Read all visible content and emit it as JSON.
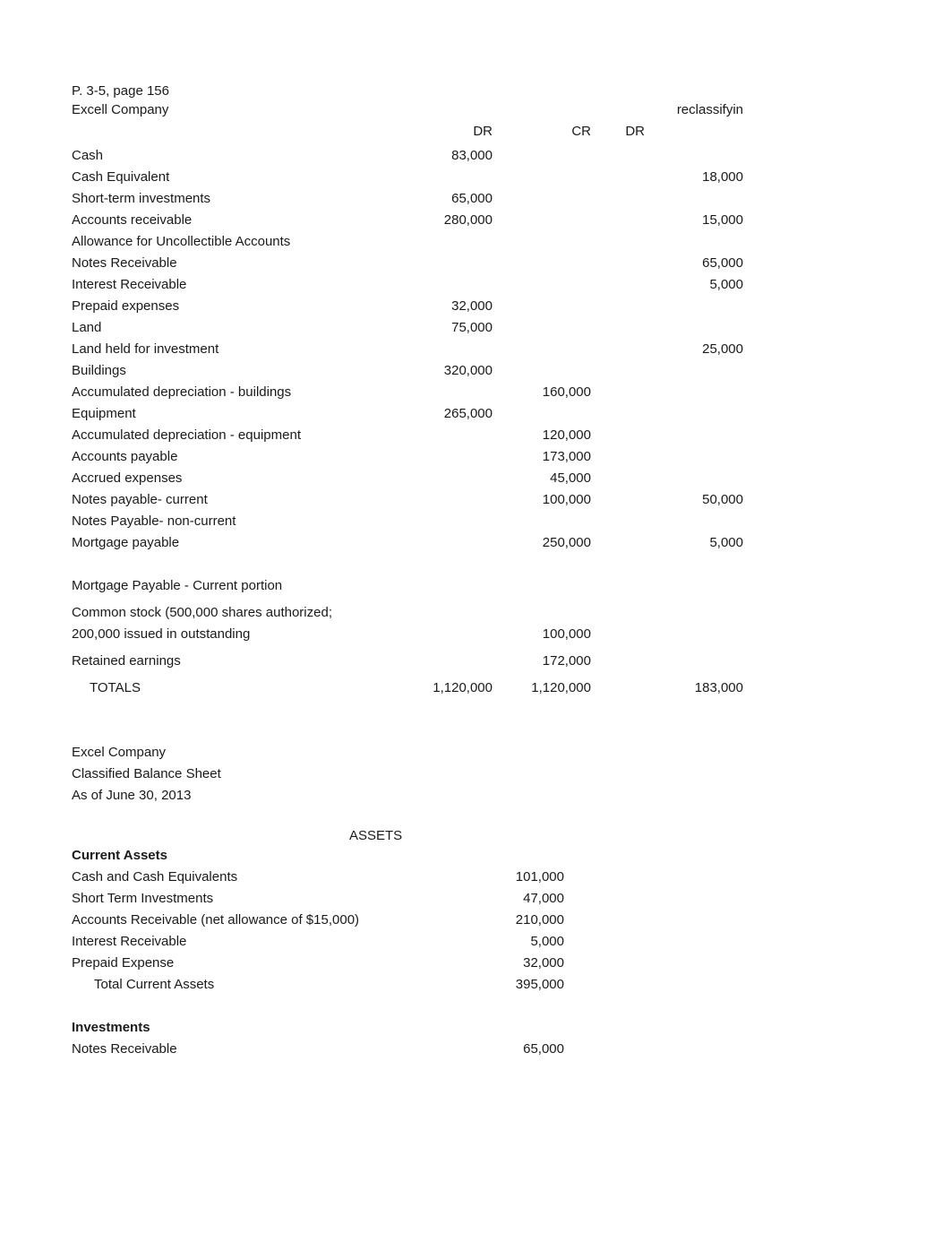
{
  "header": {
    "page_ref": "P. 3-5, page 156",
    "company": "Excell Company",
    "reclass_label": "reclassifyin",
    "col_dr": "DR",
    "col_cr": "CR",
    "col_dr2": "DR"
  },
  "trial_balance": {
    "rows": [
      {
        "label": "Cash",
        "dr": "83,000",
        "cr": "",
        "reclass": ""
      },
      {
        "label": "Cash Equivalent",
        "dr": "",
        "cr": "",
        "reclass": "18,000"
      },
      {
        "label": "Short-term investments",
        "dr": "65,000",
        "cr": "",
        "reclass": ""
      },
      {
        "label": "Accounts receivable",
        "dr": "280,000",
        "cr": "",
        "reclass": "15,000"
      },
      {
        "label": "Allowance for Uncollectible Accounts",
        "dr": "",
        "cr": "",
        "reclass": ""
      },
      {
        "label": "Notes Receivable",
        "dr": "",
        "cr": "",
        "reclass": "65,000"
      },
      {
        "label": "Interest Receivable",
        "dr": "",
        "cr": "",
        "reclass": "5,000"
      },
      {
        "label": "Prepaid expenses",
        "dr": "32,000",
        "cr": "",
        "reclass": ""
      },
      {
        "label": "Land",
        "dr": "75,000",
        "cr": "",
        "reclass": ""
      },
      {
        "label": "Land held for investment",
        "dr": "",
        "cr": "",
        "reclass": "25,000"
      },
      {
        "label": "Buildings",
        "dr": "320,000",
        "cr": "",
        "reclass": ""
      },
      {
        "label": "Accumulated depreciation - buildings",
        "dr": "",
        "cr": "160,000",
        "reclass": ""
      },
      {
        "label": "Equipment",
        "dr": "265,000",
        "cr": "",
        "reclass": ""
      },
      {
        "label": "Accumulated depreciation - equipment",
        "dr": "",
        "cr": "120,000",
        "reclass": ""
      },
      {
        "label": "Accounts payable",
        "dr": "",
        "cr": "173,000",
        "reclass": ""
      },
      {
        "label": "Accrued expenses",
        "dr": "",
        "cr": "45,000",
        "reclass": ""
      },
      {
        "label": "Notes payable- current",
        "dr": "",
        "cr": "100,000",
        "reclass": "50,000"
      },
      {
        "label": "Notes Payable- non-current",
        "dr": "",
        "cr": "",
        "reclass": ""
      },
      {
        "label": "Mortgage payable",
        "dr": "",
        "cr": "250,000",
        "reclass": "5,000"
      }
    ],
    "mortgage_current": "Mortgage Payable - Current portion",
    "common_stock_l1": "Common stock (500,000 shares authorized;",
    "common_stock_l2": "200,000 issued in outstanding",
    "common_stock_cr": "100,000",
    "retained_earnings": "Retained earnings",
    "retained_earnings_cr": "172,000",
    "totals_label": "TOTALS",
    "totals_dr": "1,120,000",
    "totals_cr": "1,120,000",
    "totals_reclass": "183,000"
  },
  "balance_sheet": {
    "company": "Excel Company",
    "title": "Classified Balance Sheet",
    "date": "As of June 30, 2013",
    "assets_heading": "ASSETS",
    "current_assets": {
      "heading": "Current Assets",
      "rows": [
        {
          "label": "Cash and Cash Equivalents",
          "val": "101,000"
        },
        {
          "label": "Short Term Investments",
          "val": "47,000"
        },
        {
          "label": "Accounts Receivable (net allowance of $15,000)",
          "val": "210,000"
        },
        {
          "label": "Interest Receivable",
          "val": "5,000"
        },
        {
          "label": "Prepaid Expense",
          "val": "32,000"
        }
      ],
      "total_label": "Total Current Assets",
      "total_val": "395,000"
    },
    "investments": {
      "heading": "Investments",
      "rows": [
        {
          "label": "Notes Receivable",
          "val": "65,000"
        }
      ]
    }
  }
}
